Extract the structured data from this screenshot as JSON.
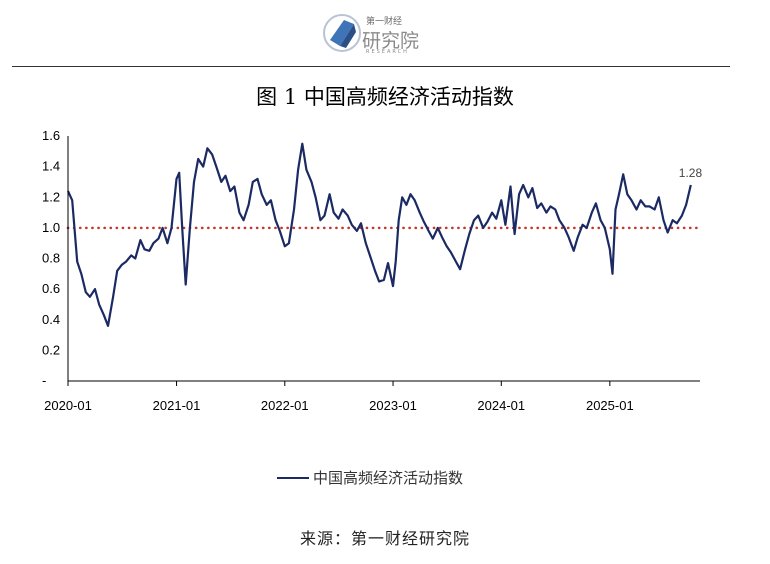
{
  "logo": {
    "top_text": "第一财经",
    "main_text": "研究院",
    "sub_text": "RESEARCH"
  },
  "title": "图 1  中国高频经济活动指数",
  "source": "来源：第一财经研究院",
  "legend": {
    "label": "中国高频经济活动指数"
  },
  "colors": {
    "line": "#1b2a63",
    "reference": "#c0392b",
    "axis": "#000000"
  },
  "chart_data": {
    "type": "line",
    "title": "图 1  中国高频经济活动指数",
    "xlabel": "",
    "ylabel": "",
    "ylim": [
      0,
      1.6
    ],
    "yticks": [
      {
        "value": 0,
        "label": "-"
      },
      {
        "value": 0.2,
        "label": "0.2"
      },
      {
        "value": 0.4,
        "label": "0.4"
      },
      {
        "value": 0.6,
        "label": "0.6"
      },
      {
        "value": 0.8,
        "label": "0.8"
      },
      {
        "value": 1.0,
        "label": "1.0"
      },
      {
        "value": 1.2,
        "label": "1.2"
      },
      {
        "value": 1.4,
        "label": "1.4"
      },
      {
        "value": 1.6,
        "label": "1.6"
      }
    ],
    "xlim": [
      "2020-01",
      "2025-11"
    ],
    "xticks": [
      "2020-01",
      "2021-01",
      "2022-01",
      "2023-01",
      "2024-01",
      "2025-01"
    ],
    "reference_line": {
      "value": 1.0,
      "style": "dotted"
    },
    "last_value_label": "1.28",
    "grid": false,
    "legend_position": "bottom",
    "series": [
      {
        "name": "中国高频经济活动指数",
        "points": [
          [
            "2020-01",
            1.24
          ],
          [
            "2020-01-15",
            1.18
          ],
          [
            "2020-02",
            0.78
          ],
          [
            "2020-02-15",
            0.7
          ],
          [
            "2020-03",
            0.58
          ],
          [
            "2020-03-15",
            0.55
          ],
          [
            "2020-04",
            0.6
          ],
          [
            "2020-04-15",
            0.5
          ],
          [
            "2020-05",
            0.43
          ],
          [
            "2020-05-15",
            0.36
          ],
          [
            "2020-06",
            0.55
          ],
          [
            "2020-06-15",
            0.72
          ],
          [
            "2020-07",
            0.76
          ],
          [
            "2020-07-15",
            0.78
          ],
          [
            "2020-08",
            0.82
          ],
          [
            "2020-08-15",
            0.8
          ],
          [
            "2020-09",
            0.92
          ],
          [
            "2020-09-15",
            0.86
          ],
          [
            "2020-10",
            0.85
          ],
          [
            "2020-10-15",
            0.9
          ],
          [
            "2020-11",
            0.93
          ],
          [
            "2020-11-15",
            1.0
          ],
          [
            "2020-12",
            0.9
          ],
          [
            "2020-12-15",
            1.0
          ],
          [
            "2021-01",
            1.32
          ],
          [
            "2021-01-10",
            1.36
          ],
          [
            "2021-01-20",
            1.0
          ],
          [
            "2021-02",
            0.63
          ],
          [
            "2021-02-15",
            1.0
          ],
          [
            "2021-03",
            1.3
          ],
          [
            "2021-03-15",
            1.45
          ],
          [
            "2021-04",
            1.4
          ],
          [
            "2021-04-15",
            1.52
          ],
          [
            "2021-05",
            1.48
          ],
          [
            "2021-05-15",
            1.4
          ],
          [
            "2021-06",
            1.3
          ],
          [
            "2021-06-15",
            1.34
          ],
          [
            "2021-07",
            1.24
          ],
          [
            "2021-07-15",
            1.27
          ],
          [
            "2021-08",
            1.1
          ],
          [
            "2021-08-15",
            1.05
          ],
          [
            "2021-09",
            1.15
          ],
          [
            "2021-09-15",
            1.3
          ],
          [
            "2021-10",
            1.32
          ],
          [
            "2021-10-15",
            1.22
          ],
          [
            "2021-11",
            1.15
          ],
          [
            "2021-11-15",
            1.18
          ],
          [
            "2021-12",
            1.05
          ],
          [
            "2021-12-15",
            0.98
          ],
          [
            "2022-01",
            0.88
          ],
          [
            "2022-01-15",
            0.9
          ],
          [
            "2022-02",
            1.12
          ],
          [
            "2022-02-15",
            1.38
          ],
          [
            "2022-03",
            1.55
          ],
          [
            "2022-03-15",
            1.38
          ],
          [
            "2022-04",
            1.3
          ],
          [
            "2022-04-15",
            1.2
          ],
          [
            "2022-05",
            1.05
          ],
          [
            "2022-05-15",
            1.08
          ],
          [
            "2022-06",
            1.22
          ],
          [
            "2022-06-15",
            1.1
          ],
          [
            "2022-07",
            1.06
          ],
          [
            "2022-07-15",
            1.12
          ],
          [
            "2022-08",
            1.08
          ],
          [
            "2022-08-15",
            1.02
          ],
          [
            "2022-09",
            0.98
          ],
          [
            "2022-09-15",
            1.03
          ],
          [
            "2022-10",
            0.9
          ],
          [
            "2022-10-15",
            0.82
          ],
          [
            "2022-11",
            0.72
          ],
          [
            "2022-11-15",
            0.65
          ],
          [
            "2022-12",
            0.66
          ],
          [
            "2022-12-15",
            0.77
          ],
          [
            "2023-01",
            0.62
          ],
          [
            "2023-01-10",
            0.78
          ],
          [
            "2023-01-20",
            1.05
          ],
          [
            "2023-02",
            1.2
          ],
          [
            "2023-02-15",
            1.15
          ],
          [
            "2023-03",
            1.22
          ],
          [
            "2023-03-15",
            1.18
          ],
          [
            "2023-04",
            1.1
          ],
          [
            "2023-04-15",
            1.04
          ],
          [
            "2023-05",
            0.98
          ],
          [
            "2023-05-15",
            0.93
          ],
          [
            "2023-06",
            1.0
          ],
          [
            "2023-06-15",
            0.94
          ],
          [
            "2023-07",
            0.88
          ],
          [
            "2023-07-15",
            0.84
          ],
          [
            "2023-08",
            0.78
          ],
          [
            "2023-08-15",
            0.73
          ],
          [
            "2023-09",
            0.86
          ],
          [
            "2023-09-15",
            0.96
          ],
          [
            "2023-10",
            1.05
          ],
          [
            "2023-10-15",
            1.08
          ],
          [
            "2023-11",
            1.0
          ],
          [
            "2023-11-15",
            1.04
          ],
          [
            "2023-12",
            1.1
          ],
          [
            "2023-12-15",
            1.06
          ],
          [
            "2024-01",
            1.18
          ],
          [
            "2024-01-15",
            1.02
          ],
          [
            "2024-02",
            1.27
          ],
          [
            "2024-02-15",
            0.96
          ],
          [
            "2024-03",
            1.22
          ],
          [
            "2024-03-15",
            1.28
          ],
          [
            "2024-04",
            1.2
          ],
          [
            "2024-04-15",
            1.26
          ],
          [
            "2024-05",
            1.13
          ],
          [
            "2024-05-15",
            1.16
          ],
          [
            "2024-06",
            1.1
          ],
          [
            "2024-06-15",
            1.14
          ],
          [
            "2024-07",
            1.12
          ],
          [
            "2024-07-15",
            1.05
          ],
          [
            "2024-08",
            1.0
          ],
          [
            "2024-08-15",
            0.94
          ],
          [
            "2024-09",
            0.85
          ],
          [
            "2024-09-15",
            0.94
          ],
          [
            "2024-10",
            1.02
          ],
          [
            "2024-10-15",
            1.0
          ],
          [
            "2024-11",
            1.1
          ],
          [
            "2024-11-15",
            1.16
          ],
          [
            "2024-12",
            1.05
          ],
          [
            "2024-12-15",
            1.0
          ],
          [
            "2025-01",
            0.86
          ],
          [
            "2025-01-10",
            0.7
          ],
          [
            "2025-01-20",
            1.12
          ],
          [
            "2025-02",
            1.22
          ],
          [
            "2025-02-15",
            1.35
          ],
          [
            "2025-03",
            1.22
          ],
          [
            "2025-03-15",
            1.18
          ],
          [
            "2025-04",
            1.12
          ],
          [
            "2025-04-15",
            1.18
          ],
          [
            "2025-05",
            1.14
          ],
          [
            "2025-05-15",
            1.14
          ],
          [
            "2025-06",
            1.12
          ],
          [
            "2025-06-15",
            1.2
          ],
          [
            "2025-07",
            1.05
          ],
          [
            "2025-07-15",
            0.97
          ],
          [
            "2025-08",
            1.05
          ],
          [
            "2025-08-15",
            1.03
          ],
          [
            "2025-09",
            1.08
          ],
          [
            "2025-09-15",
            1.15
          ],
          [
            "2025-10",
            1.28
          ]
        ]
      }
    ]
  }
}
